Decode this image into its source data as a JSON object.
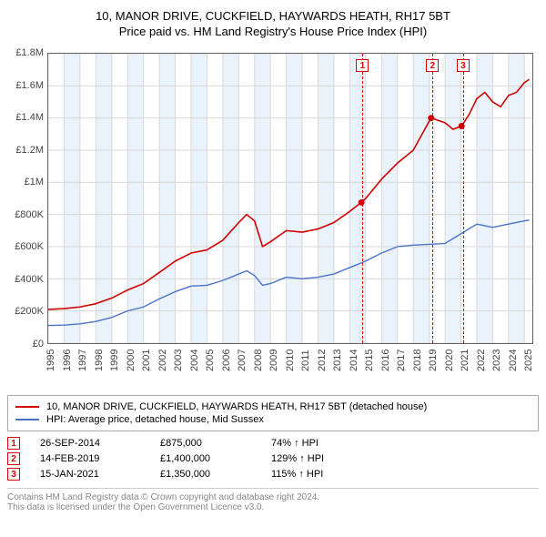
{
  "title_line1": "10, MANOR DRIVE, CUCKFIELD, HAYWARDS HEATH, RH17 5BT",
  "title_line2": "Price paid vs. HM Land Registry's House Price Index (HPI)",
  "chart": {
    "type": "line",
    "background_color": "#ffffff",
    "shaded_band_color": "#eaf2fb",
    "grid_color": "#d8d8d8",
    "axis_color": "#666666",
    "tick_fontsize": 11,
    "ylim": [
      0,
      1800000
    ],
    "ytick_step": 200000,
    "ytick_labels": [
      "£0",
      "£200K",
      "£400K",
      "£600K",
      "£800K",
      "£1M",
      "£1.2M",
      "£1.4M",
      "£1.6M",
      "£1.8M"
    ],
    "xlim": [
      1995,
      2025.5
    ],
    "xtick_step": 1,
    "xtick_labels": [
      "1995",
      "1996",
      "1997",
      "1998",
      "1999",
      "2000",
      "2001",
      "2002",
      "2003",
      "2004",
      "2005",
      "2006",
      "2007",
      "2008",
      "2009",
      "2010",
      "2011",
      "2012",
      "2013",
      "2014",
      "2015",
      "2016",
      "2017",
      "2018",
      "2019",
      "2020",
      "2021",
      "2022",
      "2023",
      "2024",
      "2025"
    ],
    "shaded_bands": [
      [
        1996,
        1997
      ],
      [
        1998,
        1999
      ],
      [
        2000,
        2001
      ],
      [
        2002,
        2003
      ],
      [
        2004,
        2005
      ],
      [
        2006,
        2007
      ],
      [
        2008,
        2009
      ],
      [
        2010,
        2011
      ],
      [
        2012,
        2013
      ],
      [
        2014,
        2015
      ],
      [
        2016,
        2017
      ],
      [
        2018,
        2019
      ],
      [
        2020,
        2021
      ],
      [
        2022,
        2023
      ],
      [
        2024,
        2025
      ]
    ],
    "series": [
      {
        "name": "property",
        "color": "#d00000",
        "width": 1.6,
        "points": [
          [
            1995,
            210000
          ],
          [
            1996,
            215000
          ],
          [
            1997,
            225000
          ],
          [
            1998,
            245000
          ],
          [
            1999,
            280000
          ],
          [
            2000,
            330000
          ],
          [
            2001,
            370000
          ],
          [
            2002,
            440000
          ],
          [
            2003,
            510000
          ],
          [
            2004,
            560000
          ],
          [
            2005,
            580000
          ],
          [
            2006,
            640000
          ],
          [
            2007,
            750000
          ],
          [
            2007.5,
            800000
          ],
          [
            2008,
            760000
          ],
          [
            2008.5,
            600000
          ],
          [
            2009,
            630000
          ],
          [
            2010,
            700000
          ],
          [
            2011,
            690000
          ],
          [
            2012,
            710000
          ],
          [
            2013,
            750000
          ],
          [
            2014,
            820000
          ],
          [
            2014.73,
            875000
          ],
          [
            2015,
            900000
          ],
          [
            2016,
            1020000
          ],
          [
            2017,
            1120000
          ],
          [
            2018,
            1200000
          ],
          [
            2019,
            1380000
          ],
          [
            2019.12,
            1400000
          ],
          [
            2020,
            1370000
          ],
          [
            2020.5,
            1330000
          ],
          [
            2021.04,
            1350000
          ],
          [
            2021.5,
            1420000
          ],
          [
            2022,
            1520000
          ],
          [
            2022.5,
            1560000
          ],
          [
            2023,
            1500000
          ],
          [
            2023.5,
            1470000
          ],
          [
            2024,
            1540000
          ],
          [
            2024.5,
            1560000
          ],
          [
            2025,
            1620000
          ],
          [
            2025.3,
            1640000
          ]
        ]
      },
      {
        "name": "hpi",
        "color": "#4a74c9",
        "width": 1.4,
        "points": [
          [
            1995,
            110000
          ],
          [
            1996,
            112000
          ],
          [
            1997,
            120000
          ],
          [
            1998,
            135000
          ],
          [
            1999,
            160000
          ],
          [
            2000,
            200000
          ],
          [
            2001,
            225000
          ],
          [
            2002,
            275000
          ],
          [
            2003,
            320000
          ],
          [
            2004,
            355000
          ],
          [
            2005,
            360000
          ],
          [
            2006,
            390000
          ],
          [
            2007,
            430000
          ],
          [
            2007.5,
            450000
          ],
          [
            2008,
            420000
          ],
          [
            2008.5,
            360000
          ],
          [
            2009,
            370000
          ],
          [
            2010,
            410000
          ],
          [
            2011,
            400000
          ],
          [
            2012,
            410000
          ],
          [
            2013,
            430000
          ],
          [
            2014,
            470000
          ],
          [
            2015,
            510000
          ],
          [
            2016,
            560000
          ],
          [
            2017,
            600000
          ],
          [
            2018,
            610000
          ],
          [
            2019,
            615000
          ],
          [
            2020,
            620000
          ],
          [
            2021,
            680000
          ],
          [
            2022,
            740000
          ],
          [
            2023,
            720000
          ],
          [
            2024,
            740000
          ],
          [
            2025,
            760000
          ],
          [
            2025.3,
            765000
          ]
        ]
      }
    ],
    "sale_markers": [
      {
        "num": "1",
        "x": 2014.73,
        "y": 875000
      },
      {
        "num": "2",
        "x": 2019.12,
        "y": 1400000
      },
      {
        "num": "3",
        "x": 2021.04,
        "y": 1350000
      }
    ]
  },
  "legend": {
    "items": [
      {
        "color": "#d00000",
        "label": "10, MANOR DRIVE, CUCKFIELD, HAYWARDS HEATH, RH17 5BT (detached house)"
      },
      {
        "color": "#4a74c9",
        "label": "HPI: Average price, detached house, Mid Sussex"
      }
    ]
  },
  "events": [
    {
      "num": "1",
      "date": "26-SEP-2014",
      "price": "£875,000",
      "pct": "74% ↑ HPI"
    },
    {
      "num": "2",
      "date": "14-FEB-2019",
      "price": "£1,400,000",
      "pct": "129% ↑ HPI"
    },
    {
      "num": "3",
      "date": "15-JAN-2021",
      "price": "£1,350,000",
      "pct": "115% ↑ HPI"
    }
  ],
  "attribution": {
    "line1": "Contains HM Land Registry data © Crown copyright and database right 2024.",
    "line2": "This data is licensed under the Open Government Licence v3.0."
  }
}
